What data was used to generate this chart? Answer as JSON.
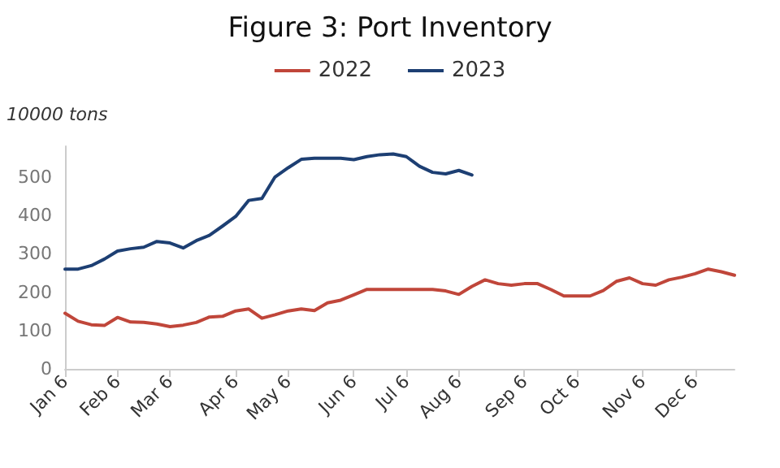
{
  "chart_data": {
    "type": "line",
    "title": "Figure 3: Port Inventory",
    "ylabel": "10000 tons",
    "categories": [
      "Jan 6",
      null,
      null,
      null,
      "Feb 6",
      null,
      null,
      null,
      "Mar 6",
      null,
      null,
      null,
      null,
      "Apr 6",
      null,
      null,
      null,
      "May 6",
      null,
      null,
      null,
      null,
      "Jun 6",
      null,
      null,
      null,
      "Jul 6",
      null,
      null,
      null,
      "Aug 6",
      null,
      null,
      null,
      null,
      "Sep 6",
      null,
      null,
      null,
      "Oct 6",
      null,
      null,
      null,
      null,
      "Nov 6",
      null,
      null,
      null,
      "Dec 6",
      null,
      null,
      null
    ],
    "series": [
      {
        "name": "2022",
        "color": "#c0463a",
        "values": [
          145,
          124,
          115,
          113,
          134,
          122,
          121,
          117,
          110,
          114,
          121,
          135,
          137,
          151,
          156,
          132,
          141,
          151,
          156,
          152,
          172,
          179,
          193,
          207,
          207,
          207,
          207,
          207,
          207,
          203,
          194,
          215,
          232,
          222,
          218,
          222,
          222,
          207,
          190,
          190,
          190,
          204,
          228,
          237,
          222,
          218,
          232,
          239,
          248,
          260,
          253,
          244
        ]
      },
      {
        "name": "2023",
        "color": "#1d3f73",
        "values": [
          260,
          260,
          269,
          286,
          307,
          313,
          317,
          332,
          328,
          315,
          334,
          348,
          372,
          397,
          439,
          444,
          500,
          524,
          546,
          549,
          549,
          549,
          545,
          553,
          558,
          560,
          553,
          528,
          512,
          508,
          517,
          505,
          null,
          null,
          null,
          null,
          null,
          null,
          null,
          null,
          null,
          null,
          null,
          null,
          null,
          null,
          null,
          null,
          null,
          null,
          null,
          null
        ]
      }
    ],
    "ylim": [
      0,
      580
    ],
    "yticks": [
      0,
      100,
      200,
      300,
      400,
      500
    ],
    "grid": false,
    "legend": "top",
    "marker": "none",
    "line_style": "solid"
  }
}
